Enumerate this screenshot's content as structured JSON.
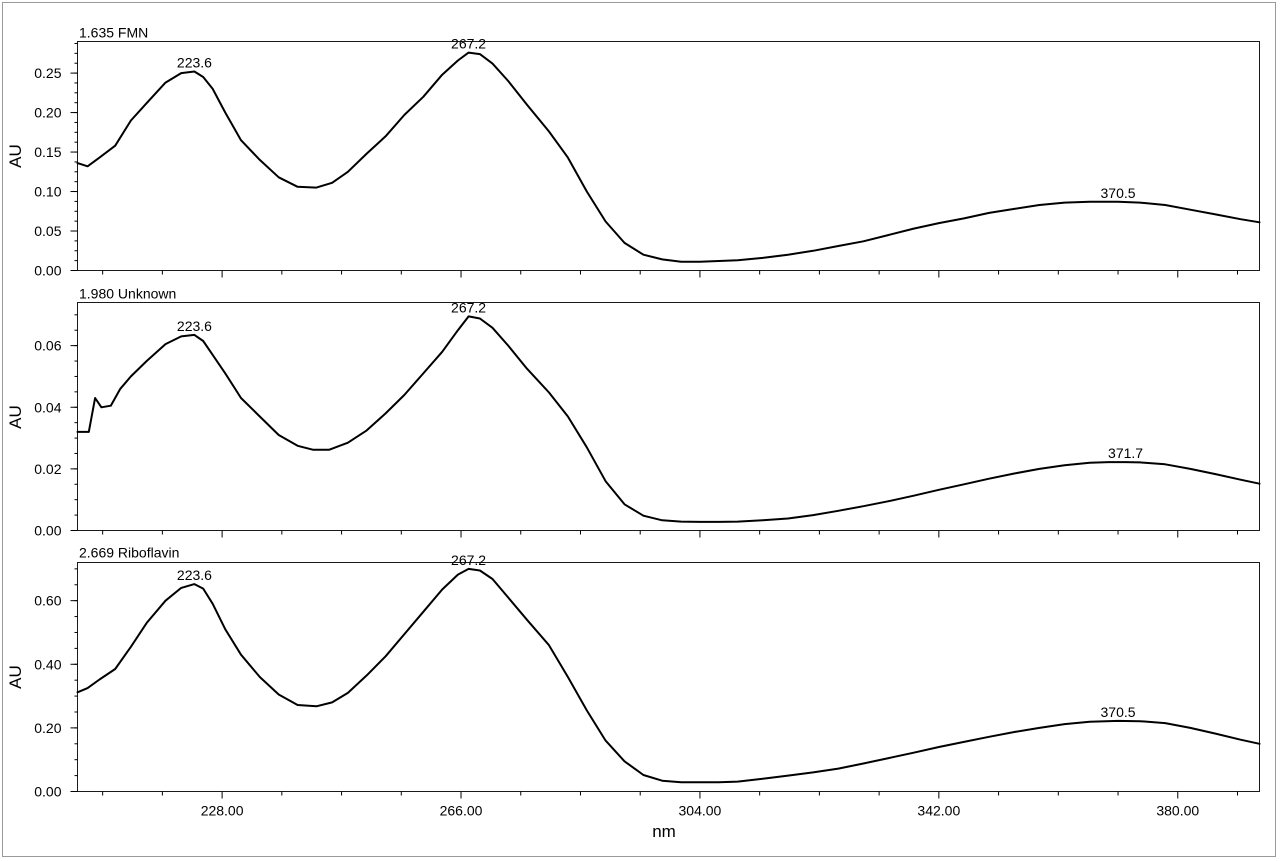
{
  "chart_data": [
    {
      "type": "line",
      "title": "1.635 FMN",
      "xlabel": "",
      "ylabel": "AU",
      "xlim": [
        205,
        393
      ],
      "ylim": [
        0,
        0.29
      ],
      "yticks": [
        0.0,
        0.05,
        0.1,
        0.15,
        0.2,
        0.25
      ],
      "ytick_labels": [
        "0.00",
        "0.05",
        "0.10",
        "0.15",
        "0.20",
        "0.25"
      ],
      "grid": false,
      "peak_labels": [
        {
          "x": 223.6,
          "y": 0.252,
          "label": "223.6"
        },
        {
          "x": 267.2,
          "y": 0.276,
          "label": "267.2"
        },
        {
          "x": 370.5,
          "y": 0.087,
          "label": "370.5"
        }
      ],
      "series": [
        {
          "x": [
            205,
            206.6,
            208.5,
            211,
            213.5,
            216,
            219,
            221.5,
            223.6,
            225,
            226.5,
            228.5,
            231,
            234,
            237,
            240,
            243,
            245.5,
            248,
            251,
            254,
            257,
            260,
            263,
            265.5,
            267.2,
            269,
            271,
            273.5,
            276.5,
            280,
            283,
            286,
            289,
            292,
            295,
            298,
            301,
            304,
            307,
            310,
            314,
            318,
            322,
            326,
            330,
            334,
            338,
            342,
            346,
            350,
            354,
            358,
            362,
            366,
            370.5,
            374,
            378,
            382,
            386,
            390,
            393
          ],
          "y": [
            0.136,
            0.132,
            0.143,
            0.158,
            0.19,
            0.212,
            0.238,
            0.25,
            0.252,
            0.245,
            0.23,
            0.2,
            0.165,
            0.14,
            0.118,
            0.106,
            0.105,
            0.111,
            0.125,
            0.148,
            0.17,
            0.197,
            0.22,
            0.248,
            0.266,
            0.276,
            0.274,
            0.262,
            0.24,
            0.21,
            0.176,
            0.143,
            0.1,
            0.062,
            0.035,
            0.02,
            0.014,
            0.011,
            0.011,
            0.012,
            0.013,
            0.016,
            0.02,
            0.025,
            0.031,
            0.037,
            0.045,
            0.053,
            0.06,
            0.066,
            0.073,
            0.078,
            0.083,
            0.086,
            0.087,
            0.087,
            0.086,
            0.083,
            0.077,
            0.071,
            0.065,
            0.061
          ]
        }
      ]
    },
    {
      "type": "line",
      "title": "1.980 Unknown",
      "xlabel": "",
      "ylabel": "AU",
      "xlim": [
        205,
        393
      ],
      "ylim": [
        0,
        0.074
      ],
      "yticks": [
        0.0,
        0.02,
        0.04,
        0.06
      ],
      "ytick_labels": [
        "0.00",
        "0.02",
        "0.04",
        "0.06"
      ],
      "grid": false,
      "peak_labels": [
        {
          "x": 223.6,
          "y": 0.0635,
          "label": "223.6"
        },
        {
          "x": 267.2,
          "y": 0.0695,
          "label": "267.2"
        },
        {
          "x": 371.7,
          "y": 0.0222,
          "label": "371.7"
        }
      ],
      "series": [
        {
          "x": [
            205,
            206.8,
            207.8,
            208.8,
            210.3,
            211.8,
            213.5,
            216,
            219,
            221.5,
            223.6,
            225,
            226.5,
            228.5,
            231,
            234,
            237,
            240,
            242.5,
            245,
            248,
            251,
            254,
            257,
            260,
            263,
            265.5,
            267.2,
            269,
            271,
            273.5,
            276.5,
            280,
            283,
            286,
            289,
            292,
            295,
            298,
            301,
            304,
            307,
            310,
            314,
            318,
            322,
            326,
            330,
            334,
            338,
            342,
            346,
            350,
            354,
            358,
            362,
            366,
            369,
            371.7,
            374,
            378,
            382,
            386,
            390,
            393
          ],
          "y": [
            0.032,
            0.032,
            0.043,
            0.04,
            0.0405,
            0.046,
            0.05,
            0.055,
            0.0605,
            0.063,
            0.0635,
            0.0615,
            0.057,
            0.051,
            0.043,
            0.037,
            0.031,
            0.0275,
            0.0262,
            0.0262,
            0.0285,
            0.0325,
            0.038,
            0.044,
            0.051,
            0.058,
            0.065,
            0.0695,
            0.0688,
            0.0658,
            0.06,
            0.0525,
            0.0448,
            0.037,
            0.027,
            0.016,
            0.0085,
            0.0048,
            0.0033,
            0.0029,
            0.0028,
            0.0028,
            0.0029,
            0.0033,
            0.0039,
            0.005,
            0.0064,
            0.0079,
            0.0095,
            0.0113,
            0.0132,
            0.015,
            0.0168,
            0.0185,
            0.02,
            0.0212,
            0.022,
            0.0222,
            0.0222,
            0.0221,
            0.0215,
            0.02,
            0.0183,
            0.0165,
            0.0152
          ]
        }
      ]
    },
    {
      "type": "line",
      "title": "2.669 Riboflavin",
      "xlabel": "nm",
      "ylabel": "AU",
      "xlim": [
        205,
        393
      ],
      "ylim": [
        0,
        0.72
      ],
      "yticks": [
        0.0,
        0.2,
        0.4,
        0.6
      ],
      "ytick_labels": [
        "0.00",
        "0.20",
        "0.40",
        "0.60"
      ],
      "xticks": [
        228,
        266,
        304,
        342,
        380
      ],
      "xtick_labels": [
        "228.00",
        "266.00",
        "304.00",
        "342.00",
        "380.00"
      ],
      "grid": false,
      "peak_labels": [
        {
          "x": 223.6,
          "y": 0.652,
          "label": "223.6"
        },
        {
          "x": 267.2,
          "y": 0.7,
          "label": "267.2"
        },
        {
          "x": 370.5,
          "y": 0.222,
          "label": "370.5"
        }
      ],
      "series": [
        {
          "x": [
            205,
            206.6,
            208.5,
            211,
            213.5,
            216,
            219,
            221.5,
            223.6,
            225,
            226.5,
            228.5,
            231,
            234,
            237,
            240,
            243,
            245.5,
            248,
            251,
            254,
            257,
            260,
            263,
            265.5,
            267.2,
            269,
            271,
            273.5,
            276.5,
            280,
            283,
            286,
            289,
            292,
            295,
            298,
            301,
            304,
            307,
            310,
            314,
            318,
            322,
            326,
            330,
            334,
            338,
            342,
            346,
            350,
            354,
            358,
            362,
            366,
            370.5,
            374,
            378,
            382,
            386,
            390,
            393
          ],
          "y": [
            0.312,
            0.325,
            0.352,
            0.385,
            0.455,
            0.53,
            0.6,
            0.64,
            0.652,
            0.638,
            0.59,
            0.51,
            0.43,
            0.36,
            0.305,
            0.272,
            0.268,
            0.28,
            0.31,
            0.365,
            0.425,
            0.495,
            0.565,
            0.635,
            0.682,
            0.7,
            0.695,
            0.668,
            0.61,
            0.54,
            0.46,
            0.36,
            0.255,
            0.16,
            0.095,
            0.052,
            0.034,
            0.029,
            0.029,
            0.029,
            0.031,
            0.04,
            0.05,
            0.06,
            0.072,
            0.088,
            0.105,
            0.122,
            0.14,
            0.156,
            0.172,
            0.187,
            0.2,
            0.212,
            0.219,
            0.222,
            0.221,
            0.215,
            0.2,
            0.182,
            0.163,
            0.15
          ]
        }
      ]
    }
  ]
}
